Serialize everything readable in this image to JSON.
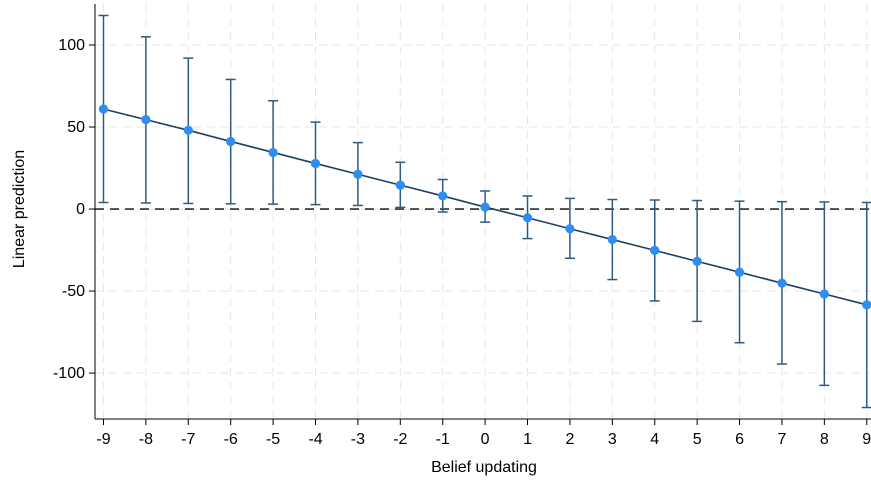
{
  "chart_data": {
    "type": "line",
    "xlabel": "Belief updating",
    "ylabel": "Linear prediction",
    "x_ticks": [
      -9,
      -8,
      -7,
      -6,
      -5,
      -4,
      -3,
      -2,
      -1,
      0,
      1,
      2,
      3,
      4,
      5,
      6,
      7,
      8,
      9
    ],
    "y_ticks": [
      -100,
      -50,
      0,
      50,
      100
    ],
    "xlim": [
      -9.2,
      9.1
    ],
    "ylim": [
      -128,
      125
    ],
    "grid": true,
    "reference_line_y": 0,
    "colors": {
      "line": "#1f3f66",
      "marker": "#2b8ef0",
      "errorbar": "#2f5a83",
      "grid": "#e6e6e6",
      "reference": "#2b2b2b"
    },
    "series": [
      {
        "x": [
          -9,
          -8,
          -7,
          -6,
          -5,
          -4,
          -3,
          -2,
          -1,
          0,
          1,
          2,
          3,
          4,
          5,
          6,
          7,
          8,
          9
        ],
        "y": [
          61,
          54.5,
          48,
          41.2,
          34.5,
          27.8,
          21.2,
          14.6,
          8,
          1.2,
          -5.3,
          -12,
          -18.6,
          -25.2,
          -31.9,
          -38.5,
          -45.2,
          -51.8,
          -58.4
        ],
        "ci_lower": [
          4,
          3.7,
          3.4,
          3.2,
          3.0,
          2.7,
          2.2,
          1.0,
          -1.8,
          -8,
          -18,
          -30,
          -43,
          -56,
          -68.5,
          -81.5,
          -94.5,
          -107.5,
          -121
        ],
        "ci_upper": [
          118,
          105,
          92,
          79,
          66,
          53,
          40.5,
          28.5,
          18,
          11,
          8,
          6.5,
          5.8,
          5.5,
          5.2,
          4.8,
          4.5,
          4.3,
          4
        ]
      }
    ]
  }
}
